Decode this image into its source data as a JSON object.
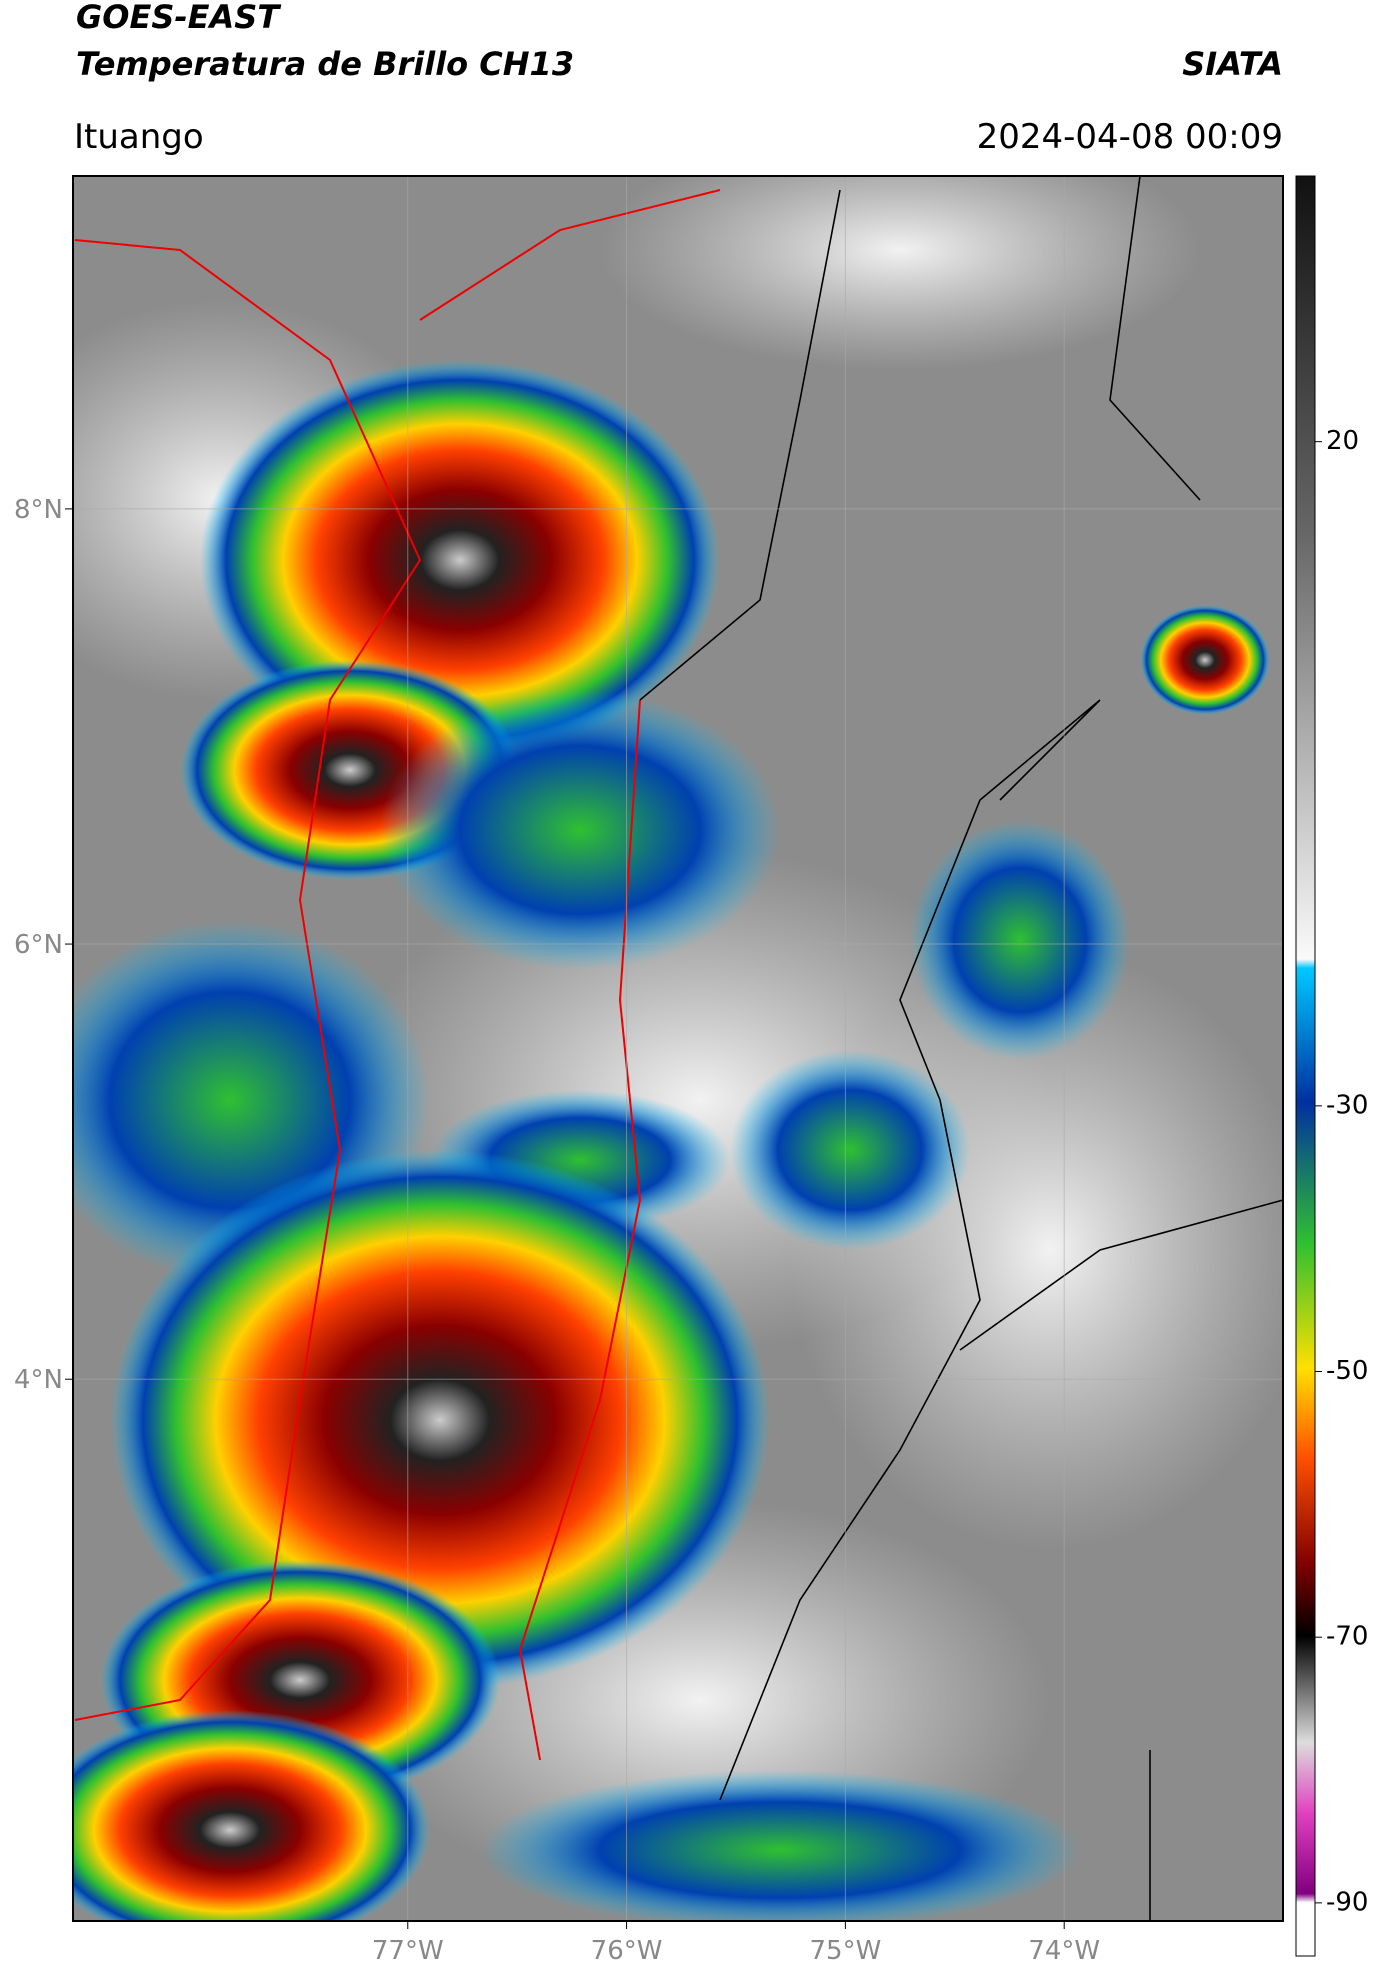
{
  "header": {
    "title": "GOES-EAST",
    "subtitle": "Temperatura de Brillo CH13",
    "brand": "SIATA",
    "location": "Ituango",
    "timestamp": "2024-04-08 00:09"
  },
  "map": {
    "lat_lim": [
      1.51,
      9.53
    ],
    "lon_lim": [
      -78.53,
      -73.0
    ],
    "lat_ticks": [
      {
        "value": 8,
        "label": "8°N"
      },
      {
        "value": 6,
        "label": "6°N"
      },
      {
        "value": 4,
        "label": "4°N"
      }
    ],
    "lon_ticks": [
      {
        "value": -77,
        "label": "77°W"
      },
      {
        "value": -76,
        "label": "76°W"
      },
      {
        "value": -75,
        "label": "75°W"
      },
      {
        "value": -74,
        "label": "74°W"
      }
    ]
  },
  "colorbar": {
    "lim": [
      -94,
      40
    ],
    "ticks": [
      20,
      -30,
      -50,
      -70,
      -90
    ]
  }
}
